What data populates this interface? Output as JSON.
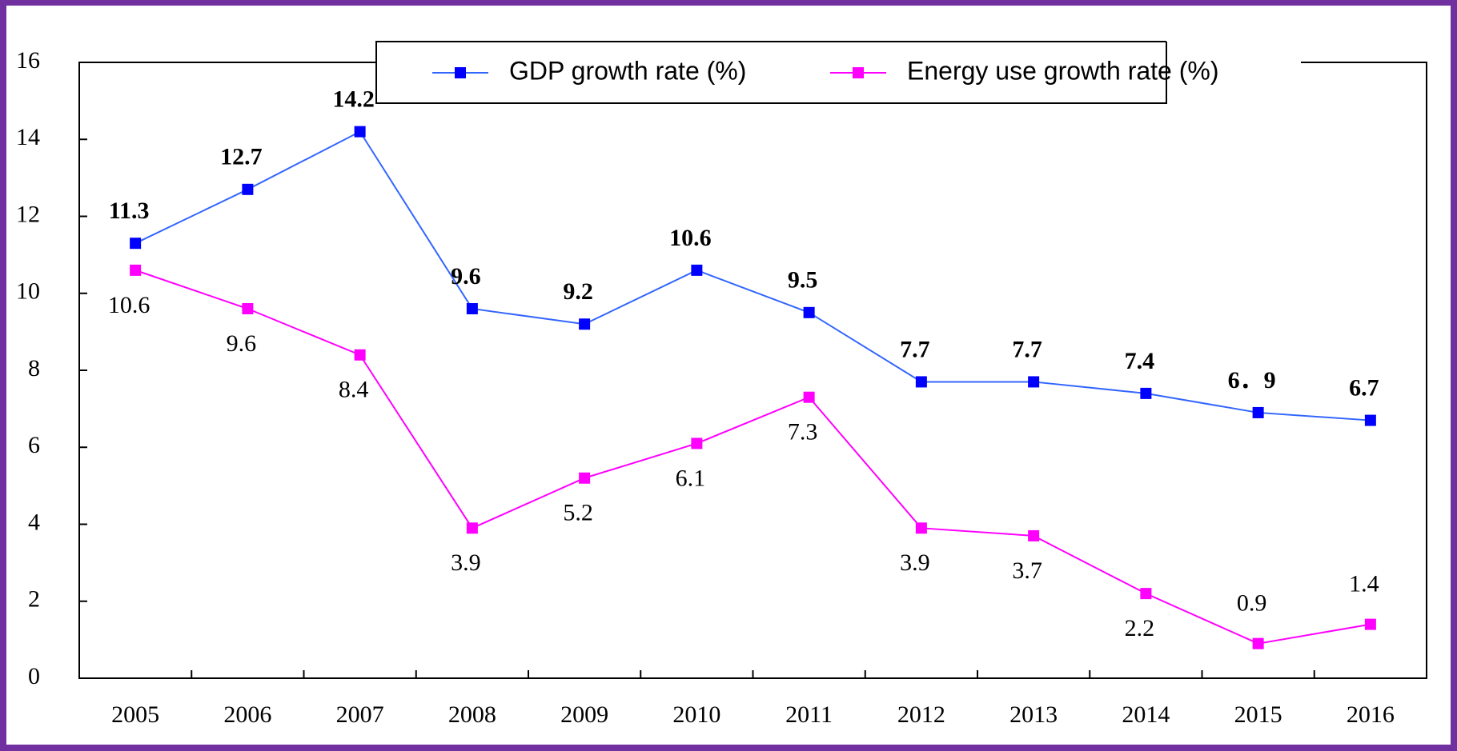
{
  "chart_data": {
    "type": "line",
    "categories": [
      "2005",
      "2006",
      "2007",
      "2008",
      "2009",
      "2010",
      "2011",
      "2012",
      "2013",
      "2014",
      "2015",
      "2016"
    ],
    "series": [
      {
        "name": "GDP growth rate (%)",
        "color": "#0000ff",
        "line_color": "#3366ff",
        "values": [
          11.3,
          12.7,
          14.2,
          9.6,
          9.2,
          10.6,
          9.5,
          7.7,
          7.7,
          7.4,
          6.9,
          6.7
        ],
        "value_labels": [
          "11.3",
          "12.7",
          "14.2",
          "9.6",
          "9.2",
          "10.6",
          "9.5",
          "7.7",
          "7.7",
          "7.4",
          "6．9",
          "6.7"
        ]
      },
      {
        "name": "Energy use growth rate (%)",
        "color": "#ff00ff",
        "line_color": "#ff00ff",
        "values": [
          10.6,
          9.6,
          8.4,
          3.9,
          5.2,
          6.1,
          7.3,
          3.9,
          3.7,
          2.2,
          0.9,
          1.4
        ]
      }
    ],
    "ylim": [
      0,
      16
    ],
    "yticks": [
      0,
      2,
      4,
      6,
      8,
      10,
      12,
      14,
      16
    ],
    "grid": false
  }
}
